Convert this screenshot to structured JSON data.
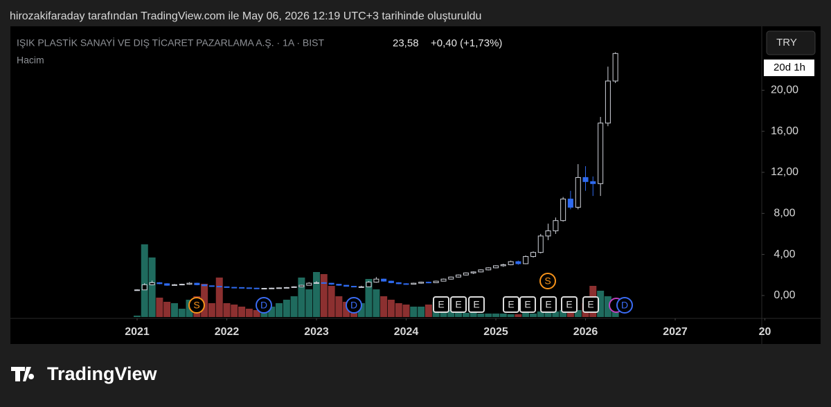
{
  "header": {
    "caption": "hirozakifaraday tarafından TradingView.com ile May 06, 2026 12:19 UTC+3 tarihinde oluşturuldu"
  },
  "chart_data": {
    "type": "candlestick",
    "title": "IŞIK PLASTİK SANAYİ VE DIŞ TİCARET PAZARLAMA A.Ş. · 1A · BIST",
    "last_price": "23,58",
    "change": "+0,40 (+1,73%)",
    "volume_label": "Hacim",
    "currency": "TRY",
    "countdown": "20d 1h",
    "up_color": "#d1d4dc",
    "down_color": "#2f6bf0",
    "volume_up_color": "#1f6b5e",
    "volume_down_color": "#8c3030",
    "x": [
      2021,
      2021.083,
      2021.167,
      2021.25,
      2021.333,
      2021.417,
      2021.5,
      2021.583,
      2021.667,
      2021.75,
      2021.833,
      2021.917,
      2022,
      2022.083,
      2022.167,
      2022.25,
      2022.333,
      2022.417,
      2022.5,
      2022.583,
      2022.667,
      2022.75,
      2022.833,
      2022.917,
      2023,
      2023.083,
      2023.167,
      2023.25,
      2023.333,
      2023.417,
      2023.5,
      2023.583,
      2023.667,
      2023.75,
      2023.833,
      2023.917,
      2024,
      2024.083,
      2024.167,
      2024.25,
      2024.333,
      2024.417,
      2024.5,
      2024.583,
      2024.667,
      2024.75,
      2024.833,
      2024.917,
      2025,
      2025.083,
      2025.167,
      2025.25,
      2025.333,
      2025.417,
      2025.5,
      2025.583,
      2025.667,
      2025.75,
      2025.833,
      2025.917,
      2026,
      2026.083,
      2026.167,
      2026.25,
      2026.333
    ],
    "open": [
      0.5,
      0.55,
      1.05,
      1.25,
      1.15,
      1,
      1.05,
      1.1,
      1.2,
      1.05,
      0.95,
      0.9,
      0.85,
      0.8,
      0.78,
      0.75,
      0.72,
      0.7,
      0.7,
      0.72,
      0.75,
      0.78,
      0.85,
      1,
      1.2,
      1.25,
      1.2,
      1.1,
      1,
      0.9,
      0.85,
      0.85,
      1.3,
      1.6,
      1.4,
      1.25,
      1.15,
      1.1,
      1.2,
      1.3,
      1.25,
      1.4,
      1.6,
      1.8,
      2,
      2.2,
      2.3,
      2.5,
      2.7,
      2.9,
      3,
      3.3,
      3.1,
      3.8,
      4.2,
      5.8,
      6.3,
      7.3,
      9.4,
      8.6,
      11.5,
      11.1,
      10.9,
      16.8,
      20.9
    ],
    "high": [
      0.6,
      1.2,
      1.45,
      1.3,
      1.2,
      1.12,
      1.15,
      1.3,
      1.25,
      1.08,
      0.98,
      0.92,
      0.88,
      0.84,
      0.8,
      0.78,
      0.75,
      0.74,
      0.76,
      0.78,
      0.82,
      0.9,
      1.05,
      1.3,
      1.4,
      1.3,
      1.22,
      1.12,
      1.02,
      0.92,
      0.95,
      1.4,
      1.8,
      1.65,
      1.45,
      1.3,
      1.2,
      1.25,
      1.35,
      1.35,
      1.45,
      1.65,
      1.85,
      2.05,
      2.25,
      2.35,
      2.55,
      2.75,
      2.95,
      3.1,
      3.4,
      3.4,
      3.9,
      4.3,
      6,
      7,
      7.6,
      9.6,
      10.2,
      12.8,
      12.6,
      11.6,
      17.4,
      22.3,
      23.7
    ],
    "low": [
      0.48,
      0.55,
      1,
      1.1,
      0.95,
      0.98,
      1,
      1.05,
      1,
      0.92,
      0.86,
      0.82,
      0.78,
      0.75,
      0.72,
      0.7,
      0.68,
      0.67,
      0.68,
      0.7,
      0.72,
      0.76,
      0.83,
      0.98,
      1.15,
      1.15,
      1.05,
      0.95,
      0.88,
      0.82,
      0.82,
      0.84,
      1.25,
      1.35,
      1.2,
      1.1,
      1.05,
      1.08,
      1.15,
      1.2,
      1.22,
      1.38,
      1.55,
      1.75,
      1.95,
      2.1,
      2.25,
      2.45,
      2.65,
      2.8,
      2.95,
      3,
      3.05,
      3.7,
      4.1,
      5.4,
      6,
      7.2,
      8.4,
      8.4,
      10.2,
      9.7,
      9.7,
      16.5,
      20.7
    ],
    "close": [
      0.55,
      1.05,
      1.25,
      1.15,
      1,
      1.05,
      1.1,
      1.2,
      1.05,
      0.95,
      0.9,
      0.85,
      0.8,
      0.78,
      0.75,
      0.72,
      0.7,
      0.7,
      0.72,
      0.75,
      0.78,
      0.85,
      1,
      1.2,
      1.25,
      1.2,
      1.1,
      1,
      0.9,
      0.85,
      0.85,
      1.3,
      1.6,
      1.4,
      1.25,
      1.15,
      1.1,
      1.2,
      1.3,
      1.25,
      1.4,
      1.6,
      1.8,
      2,
      2.2,
      2.3,
      2.5,
      2.7,
      2.9,
      3,
      3.3,
      3.1,
      3.8,
      4.2,
      5.8,
      6.3,
      7.3,
      9.4,
      8.6,
      11.5,
      11.1,
      10.9,
      16.8,
      20.9,
      23.58
    ],
    "volume": [
      2,
      105,
      86,
      28,
      22,
      20,
      12,
      25,
      30,
      48,
      20,
      57,
      20,
      18,
      15,
      12,
      10,
      12,
      15,
      20,
      25,
      30,
      57,
      40,
      65,
      62,
      45,
      30,
      22,
      15,
      20,
      55,
      40,
      30,
      25,
      20,
      18,
      15,
      15,
      18,
      22,
      12,
      10,
      8,
      6,
      6,
      5,
      5,
      5,
      5,
      4,
      4,
      6,
      5,
      8,
      10,
      8,
      10,
      6,
      10,
      20,
      45,
      38,
      30,
      10
    ],
    "xlim": [
      2019.587,
      2027.965
    ],
    "ylim": [
      -2.23,
      26.23
    ],
    "xticks": [
      2021,
      2022,
      2023,
      2024,
      2025,
      2026,
      2027,
      {
        "value": 2028,
        "label": "20"
      }
    ],
    "yticks": [
      {
        "value": 0,
        "label": "0,00"
      },
      {
        "value": 4,
        "label": "4,00"
      },
      {
        "value": 8,
        "label": "8,00"
      },
      {
        "value": 12,
        "label": "12,00"
      },
      {
        "value": 16,
        "label": "16,00"
      },
      {
        "value": 20,
        "label": "20,00"
      }
    ],
    "events": [
      {
        "label": "S"
      },
      {
        "label": "D"
      },
      {
        "label": "D"
      },
      {
        "label": "E"
      },
      {
        "label": "E"
      },
      {
        "label": "E"
      },
      {
        "label": "E"
      },
      {
        "label": "E"
      },
      {
        "label": "S"
      },
      {
        "label": "E"
      },
      {
        "label": "E"
      },
      {
        "label": "E"
      },
      {
        "label": "D"
      }
    ]
  },
  "footer": {
    "logo": "TradingView"
  }
}
